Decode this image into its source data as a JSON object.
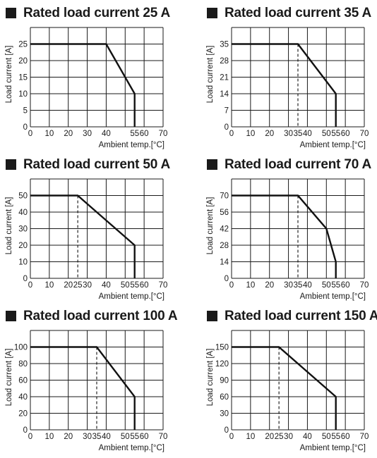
{
  "chart_data": [
    {
      "type": "line",
      "title": "Rated load current 25 A",
      "xlabel": "Ambient temp.[°C]",
      "ylabel": "Load current [A]",
      "xlim": [
        0,
        70
      ],
      "ylim": [
        0,
        30
      ],
      "x_ticks": [
        0,
        10,
        20,
        30,
        40,
        55,
        60,
        70
      ],
      "y_ticks": [
        0,
        5,
        10,
        15,
        20,
        25
      ],
      "grid_x": [
        0,
        10,
        20,
        30,
        40,
        50,
        60,
        70
      ],
      "grid_y": [
        0,
        5,
        10,
        15,
        20,
        25,
        30
      ],
      "series": [
        {
          "x": [
            0,
            40,
            55,
            55
          ],
          "y": [
            25,
            25,
            10,
            0
          ]
        }
      ],
      "dashed_x": null
    },
    {
      "type": "line",
      "title": "Rated load current 35 A",
      "xlabel": "Ambient temp.[°C]",
      "ylabel": "Load current [A]",
      "xlim": [
        0,
        70
      ],
      "ylim": [
        0,
        42
      ],
      "x_ticks": [
        0,
        10,
        20,
        30,
        35,
        40,
        50,
        55,
        60,
        70
      ],
      "y_ticks": [
        0,
        7,
        14,
        21,
        28,
        35
      ],
      "grid_x": [
        0,
        10,
        20,
        30,
        40,
        50,
        60,
        70
      ],
      "grid_y": [
        0,
        7,
        14,
        21,
        28,
        35,
        42
      ],
      "series": [
        {
          "x": [
            0,
            35,
            55,
            55
          ],
          "y": [
            35,
            35,
            14,
            0
          ]
        }
      ],
      "dashed_x": 35
    },
    {
      "type": "line",
      "title": "Rated load current 50 A",
      "xlabel": "Ambient temp.[°C]",
      "ylabel": "Load current [A]",
      "xlim": [
        0,
        70
      ],
      "ylim": [
        0,
        60
      ],
      "x_ticks": [
        0,
        10,
        20,
        25,
        30,
        40,
        50,
        55,
        60,
        70
      ],
      "y_ticks": [
        0,
        10,
        20,
        30,
        40,
        50
      ],
      "grid_x": [
        0,
        10,
        20,
        30,
        40,
        50,
        60,
        70
      ],
      "grid_y": [
        0,
        10,
        20,
        30,
        40,
        50,
        60
      ],
      "series": [
        {
          "x": [
            0,
            25,
            55,
            55
          ],
          "y": [
            50,
            50,
            20,
            0
          ]
        }
      ],
      "dashed_x": 25
    },
    {
      "type": "line",
      "title": "Rated load current 70 A",
      "xlabel": "Ambient temp.[°C]",
      "ylabel": "Load current [A]",
      "xlim": [
        0,
        70
      ],
      "ylim": [
        0,
        84
      ],
      "x_ticks": [
        0,
        10,
        20,
        30,
        35,
        40,
        50,
        55,
        60,
        70
      ],
      "y_ticks": [
        0,
        14,
        28,
        42,
        56,
        70
      ],
      "grid_x": [
        0,
        10,
        20,
        30,
        40,
        50,
        60,
        70
      ],
      "grid_y": [
        0,
        14,
        28,
        42,
        56,
        70,
        84
      ],
      "series": [
        {
          "x": [
            0,
            35,
            50,
            55,
            55
          ],
          "y": [
            70,
            70,
            42,
            14,
            0
          ]
        }
      ],
      "dashed_x": 35
    },
    {
      "type": "line",
      "title": "Rated load current 100 A",
      "xlabel": "Ambient temp.[°C]",
      "ylabel": "Load current [A]",
      "xlim": [
        0,
        70
      ],
      "ylim": [
        0,
        120
      ],
      "x_ticks": [
        0,
        10,
        20,
        30,
        35,
        40,
        50,
        55,
        60,
        70
      ],
      "y_ticks": [
        0,
        20,
        40,
        60,
        80,
        100
      ],
      "grid_x": [
        0,
        10,
        20,
        30,
        40,
        50,
        60,
        70
      ],
      "grid_y": [
        0,
        20,
        40,
        60,
        80,
        100,
        120
      ],
      "series": [
        {
          "x": [
            0,
            35,
            55,
            55
          ],
          "y": [
            100,
            100,
            40,
            0
          ]
        }
      ],
      "dashed_x": 35
    },
    {
      "type": "line",
      "title": "Rated load current 150 A",
      "xlabel": "Ambient temp.[°C]",
      "ylabel": "Load current [A]",
      "xlim": [
        0,
        70
      ],
      "ylim": [
        0,
        180
      ],
      "x_ticks": [
        0,
        10,
        20,
        25,
        30,
        40,
        50,
        55,
        60,
        70
      ],
      "y_ticks": [
        0,
        30,
        60,
        90,
        120,
        150
      ],
      "grid_x": [
        0,
        10,
        20,
        30,
        40,
        50,
        60,
        70
      ],
      "grid_y": [
        0,
        30,
        60,
        90,
        120,
        150,
        180
      ],
      "series": [
        {
          "x": [
            0,
            25,
            55,
            55
          ],
          "y": [
            150,
            150,
            60,
            0
          ]
        }
      ],
      "dashed_x": 25
    }
  ],
  "colors": {
    "line": "#111111",
    "grid": "#1a1a1a",
    "text": "#1a1a1a"
  }
}
